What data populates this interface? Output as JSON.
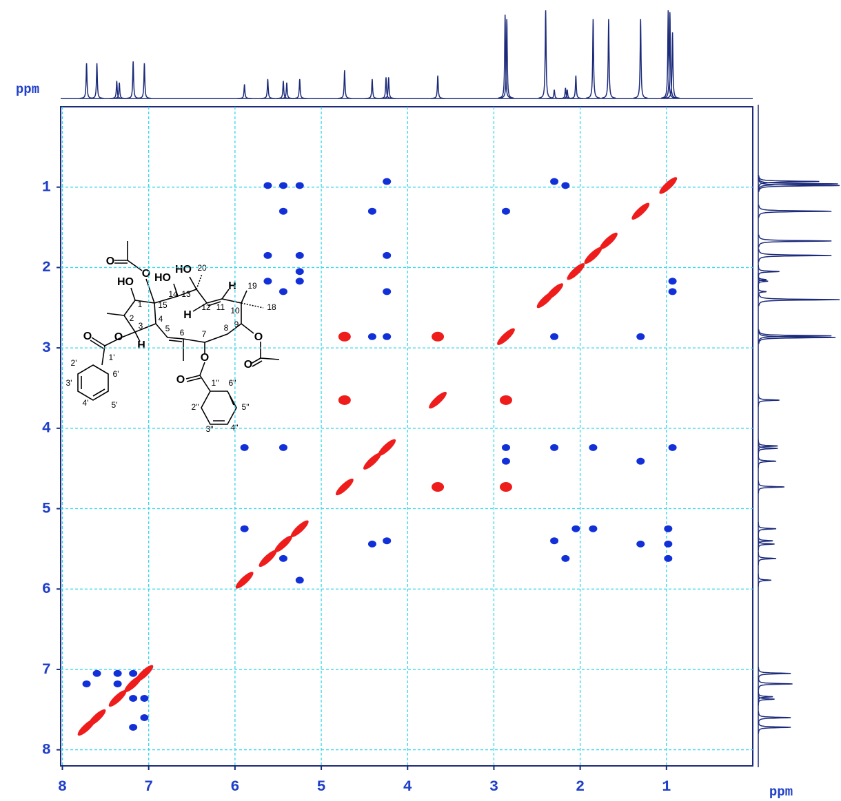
{
  "chart_data": {
    "type": "nmr2d",
    "xlabel": "ppm",
    "top_label": "ppm",
    "xlim": [
      8.02,
      0
    ],
    "ylim": [
      0,
      8.2
    ],
    "xticks": [
      8,
      7,
      6,
      5,
      4,
      3,
      2,
      1
    ],
    "yticks": [
      1,
      2,
      3,
      4,
      5,
      6,
      7,
      8
    ],
    "grid": true,
    "projection": {
      "color": "#1b2a7a",
      "ppm": [
        7.72,
        7.6,
        7.37,
        7.34,
        7.18,
        7.05,
        5.89,
        5.62,
        5.44,
        5.4,
        5.25,
        4.73,
        4.41,
        4.25,
        4.22,
        3.65,
        2.87,
        2.85,
        2.4,
        2.3,
        2.17,
        2.15,
        2.05,
        1.85,
        1.67,
        1.3,
        0.98,
        0.96,
        0.93
      ],
      "intensity": [
        40,
        40,
        20,
        18,
        42,
        40,
        16,
        22,
        20,
        18,
        22,
        32,
        22,
        24,
        24,
        26,
        95,
        90,
        100,
        10,
        12,
        10,
        26,
        90,
        90,
        90,
        100,
        98,
        75
      ]
    },
    "series": [
      {
        "color": "#ef1c1c",
        "x": [
          7.72,
          7.6,
          7.36,
          7.18,
          7.05,
          5.89,
          5.62,
          5.44,
          5.25,
          4.41,
          4.24,
          2.4,
          2.3,
          2.05,
          1.85,
          1.67,
          1.3,
          0.98
        ],
        "y": [
          7.72,
          7.6,
          7.36,
          7.18,
          7.05,
          5.89,
          5.62,
          5.44,
          5.25,
          4.41,
          4.24,
          2.4,
          2.3,
          2.05,
          1.85,
          1.67,
          1.3,
          0.98
        ]
      },
      {
        "color": "#ef1c1c",
        "x": [
          4.73,
          3.65,
          2.86,
          4.73,
          3.65,
          2.86,
          4.73,
          3.65,
          2.86
        ],
        "y": [
          2.86,
          2.86,
          2.86,
          3.65,
          3.65,
          3.65,
          4.73,
          4.73,
          4.73
        ]
      },
      {
        "color": "#1230d8",
        "x": [
          5.62,
          5.44,
          5.25,
          5.44,
          5.62,
          5.25,
          5.25,
          5.25,
          5.62,
          5.44,
          4.24,
          4.41,
          4.24,
          4.24,
          4.41,
          4.24,
          2.3,
          2.17,
          2.86,
          0.93,
          0.93,
          2.3,
          1.3,
          2.86,
          2.86,
          2.3,
          1.85,
          1.3,
          0.93,
          5.89,
          5.44,
          5.89,
          5.25,
          5.44,
          2.3,
          2.05,
          2.17,
          1.85,
          1.3,
          0.98,
          0.98,
          0.98,
          4.41,
          4.24,
          7.6,
          7.36,
          7.18,
          7.72,
          7.36,
          7.05,
          7.18,
          7.05,
          7.18
        ],
        "y": [
          0.98,
          0.98,
          0.98,
          1.3,
          1.85,
          1.85,
          2.05,
          2.17,
          2.17,
          2.3,
          0.93,
          1.3,
          1.85,
          2.3,
          2.86,
          2.86,
          0.93,
          0.98,
          1.3,
          2.17,
          2.3,
          2.86,
          2.86,
          4.24,
          4.41,
          4.24,
          4.24,
          4.41,
          4.24,
          4.24,
          4.24,
          5.25,
          5.89,
          5.62,
          5.4,
          5.25,
          5.62,
          5.25,
          5.44,
          5.25,
          5.44,
          5.62,
          5.44,
          5.4,
          7.05,
          7.05,
          7.05,
          7.18,
          7.18,
          7.36,
          7.36,
          7.6,
          7.72
        ]
      }
    ]
  },
  "structure": {
    "labels": [
      "O",
      "O",
      "HO",
      "HO",
      "HO",
      "20",
      "1",
      "2",
      "3",
      "4",
      "15",
      "14",
      "13",
      "12",
      "11",
      "10",
      "19",
      "18",
      "9",
      "8",
      "7",
      "6",
      "5",
      "H",
      "H",
      "H",
      "O",
      "O",
      "O",
      "O",
      "O",
      "O",
      "1'",
      "2'",
      "3'",
      "4'",
      "5'",
      "6'",
      "1\"",
      "2\"",
      "3\"",
      "4\"",
      "5\"",
      "6\""
    ]
  }
}
